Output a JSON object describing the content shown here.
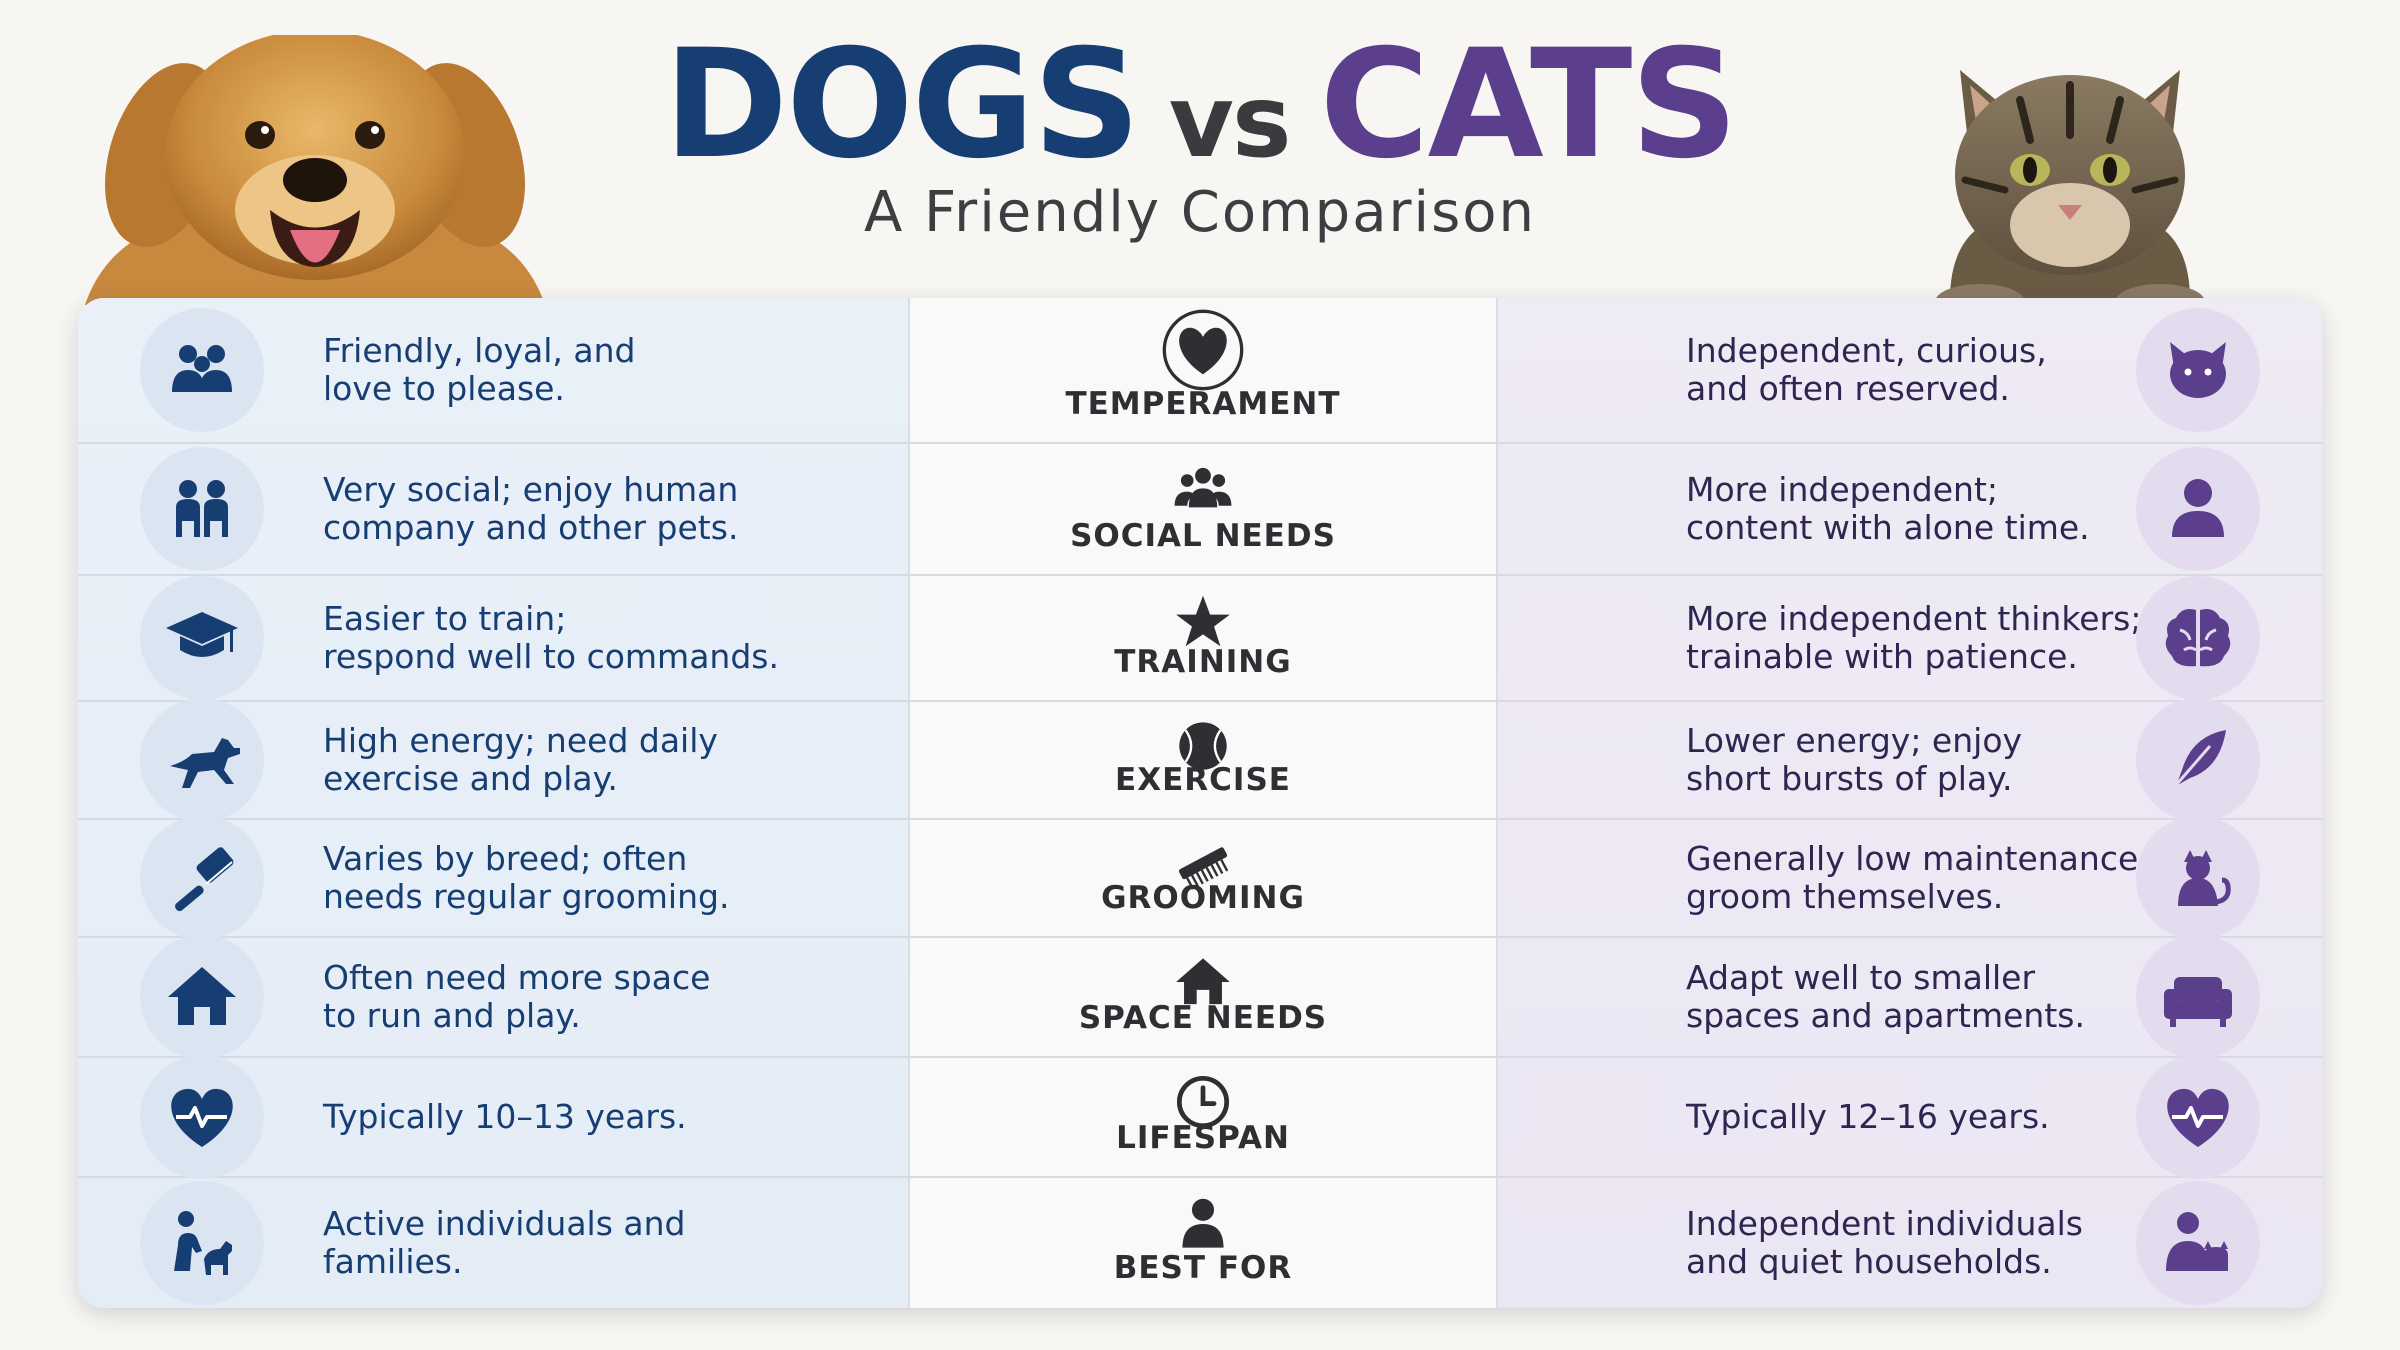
{
  "header": {
    "title_dogs": "DOGS",
    "title_vs": "vs",
    "title_cats": "CATS",
    "subtitle": "A Friendly Comparison"
  },
  "colors": {
    "dog_accent": "#173e72",
    "cat_accent": "#5b3f8c",
    "dog_panel": "#e6eef7",
    "cat_panel": "#ede8f4"
  },
  "rows": [
    {
      "category": "TEMPERAMENT",
      "mid_icon": "heart-icon",
      "dog_icon": "family-icon",
      "dog_text": "Friendly, loyal, and\nlove to please.",
      "cat_icon": "cat-face-icon",
      "cat_text": "Independent, curious,\nand often reserved."
    },
    {
      "category": "SOCIAL NEEDS",
      "mid_icon": "group-icon",
      "dog_icon": "people-pair-icon",
      "dog_text": "Very social; enjoy human\ncompany and other pets.",
      "cat_icon": "single-person-icon",
      "cat_text": "More independent;\ncontent with alone time."
    },
    {
      "category": "TRAINING",
      "mid_icon": "star-icon",
      "dog_icon": "graduation-cap-icon",
      "dog_text": "Easier to train;\nrespond well to commands.",
      "cat_icon": "brain-icon",
      "cat_text": "More independent thinkers;\ntrainable with patience."
    },
    {
      "category": "EXERCISE",
      "mid_icon": "ball-icon",
      "dog_icon": "running-dog-icon",
      "dog_text": "High energy; need daily\nexercise and play.",
      "cat_icon": "feather-icon",
      "cat_text": "Lower energy; enjoy\nshort bursts of play."
    },
    {
      "category": "GROOMING",
      "mid_icon": "comb-icon",
      "dog_icon": "brush-icon",
      "dog_text": "Varies by breed; often\nneeds regular grooming.",
      "cat_icon": "sitting-cat-icon",
      "cat_text": "Generally low maintenance;\ngroom themselves."
    },
    {
      "category": "SPACE NEEDS",
      "mid_icon": "house-icon",
      "dog_icon": "house-icon",
      "dog_text": "Often need more space\nto run and play.",
      "cat_icon": "sofa-icon",
      "cat_text": "Adapt well to smaller\nspaces and apartments."
    },
    {
      "category": "LIFESPAN",
      "mid_icon": "clock-icon",
      "dog_icon": "heartbeat-icon",
      "dog_text": "Typically 10–13 years.",
      "cat_icon": "heartbeat-icon",
      "cat_text": "Typically 12–16 years."
    },
    {
      "category": "BEST FOR",
      "mid_icon": "person-icon",
      "dog_icon": "person-with-dog-icon",
      "dog_text": "Active individuals and\nfamilies.",
      "cat_icon": "person-with-cat-icon",
      "cat_text": "Independent individuals\nand quiet households."
    }
  ]
}
